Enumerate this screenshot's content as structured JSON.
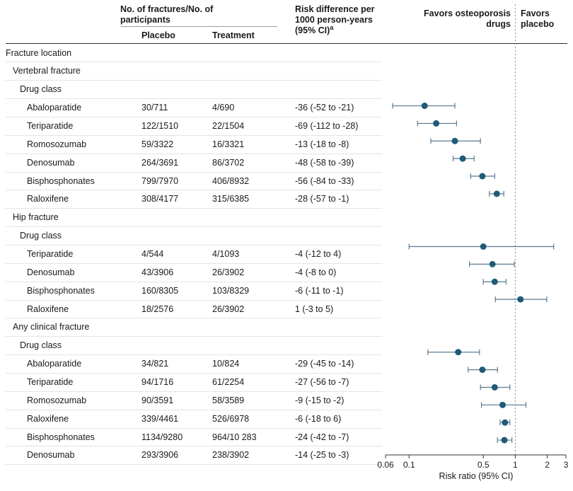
{
  "header": {
    "fractures_group": "No. of fractures/No. of participants",
    "placebo": "Placebo",
    "treatment": "Treatment",
    "risk_diff": "Risk difference per 1000 person-years (95% CI)",
    "risk_diff_sup": "a",
    "favors_left": "Favors osteoporosis drugs",
    "favors_right": "Favors placebo"
  },
  "axis": {
    "label": "Risk ratio (95% CI)",
    "scale": "log",
    "min": 0.06,
    "max": 3,
    "reference_line": 1,
    "ticks": [
      0.06,
      0.1,
      0.5,
      1,
      2,
      3
    ],
    "tick_labels": [
      "0.06",
      "0.1",
      "0.5",
      "1",
      "2",
      "3"
    ]
  },
  "colors": {
    "point": "#1f5b78",
    "error_bar": "#5a7990",
    "row_divider": "#e4e4e4",
    "axis": "#333333",
    "ref_line": "#8a8a8a",
    "header_rule": "#2b2b2b",
    "text": "#1a1a1a"
  },
  "chart_data": {
    "type": "forest",
    "x_scale": "log",
    "xlabel": "Risk ratio (95% CI)",
    "xlim": [
      0.06,
      3
    ],
    "rows": [
      {
        "kind": "section",
        "indent": 0,
        "label": "Fracture location"
      },
      {
        "kind": "section",
        "indent": 1,
        "label": "Vertebral fracture"
      },
      {
        "kind": "section",
        "indent": 2,
        "label": "Drug class"
      },
      {
        "kind": "data",
        "indent": 3,
        "label": "Abaloparatide",
        "placebo": "30/711",
        "treatment": "4/690",
        "risk_diff": "-36 (-52 to -21)",
        "rr": 0.14,
        "ci_low": 0.07,
        "ci_high": 0.27
      },
      {
        "kind": "data",
        "indent": 3,
        "label": "Teriparatide",
        "placebo": "122/1510",
        "treatment": "22/1504",
        "risk_diff": "-69 (-112 to -28)",
        "rr": 0.18,
        "ci_low": 0.12,
        "ci_high": 0.28
      },
      {
        "kind": "data",
        "indent": 3,
        "label": "Romosozumab",
        "placebo": "59/3322",
        "treatment": "16/3321",
        "risk_diff": "-13 (-18 to -8)",
        "rr": 0.27,
        "ci_low": 0.16,
        "ci_high": 0.47
      },
      {
        "kind": "data",
        "indent": 3,
        "label": "Denosumab",
        "placebo": "264/3691",
        "treatment": "86/3702",
        "risk_diff": "-48 (-58 to -39)",
        "rr": 0.32,
        "ci_low": 0.26,
        "ci_high": 0.41
      },
      {
        "kind": "data",
        "indent": 3,
        "label": "Bisphosphonates",
        "placebo": "799/7970",
        "treatment": "406/8932",
        "risk_diff": "-56 (-84 to -33)",
        "rr": 0.49,
        "ci_low": 0.38,
        "ci_high": 0.64
      },
      {
        "kind": "data",
        "indent": 3,
        "label": "Raloxifene",
        "placebo": "308/4177",
        "treatment": "315/6385",
        "risk_diff": "-28 (-57 to -1)",
        "rr": 0.67,
        "ci_low": 0.57,
        "ci_high": 0.78
      },
      {
        "kind": "section",
        "indent": 1,
        "label": "Hip fracture"
      },
      {
        "kind": "section",
        "indent": 2,
        "label": "Drug class"
      },
      {
        "kind": "data",
        "indent": 3,
        "label": "Teriparatide",
        "placebo": "4/544",
        "treatment": "4/1093",
        "risk_diff": "-4 (-12 to 4)",
        "rr": 0.5,
        "ci_low": 0.1,
        "ci_high": 2.3
      },
      {
        "kind": "data",
        "indent": 3,
        "label": "Denosumab",
        "placebo": "43/3906",
        "treatment": "26/3902",
        "risk_diff": "-4 (-8 to 0)",
        "rr": 0.61,
        "ci_low": 0.37,
        "ci_high": 0.98
      },
      {
        "kind": "data",
        "indent": 3,
        "label": "Bisphosphonates",
        "placebo": "160/8305",
        "treatment": "103/8329",
        "risk_diff": "-6 (-11 to -1)",
        "rr": 0.64,
        "ci_low": 0.5,
        "ci_high": 0.82
      },
      {
        "kind": "data",
        "indent": 3,
        "label": "Raloxifene",
        "placebo": "18/2576",
        "treatment": "26/3902",
        "risk_diff": "1 (-3 to 5)",
        "rr": 1.12,
        "ci_low": 0.65,
        "ci_high": 1.98
      },
      {
        "kind": "section",
        "indent": 1,
        "label": "Any clinical fracture"
      },
      {
        "kind": "section",
        "indent": 2,
        "label": "Drug class"
      },
      {
        "kind": "data",
        "indent": 3,
        "label": "Abaloparatide",
        "placebo": "34/821",
        "treatment": "10/824",
        "risk_diff": "-29 (-45 to -14)",
        "rr": 0.29,
        "ci_low": 0.15,
        "ci_high": 0.46
      },
      {
        "kind": "data",
        "indent": 3,
        "label": "Teriparatide",
        "placebo": "94/1716",
        "treatment": "61/2254",
        "risk_diff": "-27 (-56 to -7)",
        "rr": 0.49,
        "ci_low": 0.36,
        "ci_high": 0.68
      },
      {
        "kind": "data",
        "indent": 3,
        "label": "Romosozumab",
        "placebo": "90/3591",
        "treatment": "58/3589",
        "risk_diff": "-9 (-15 to -2)",
        "rr": 0.64,
        "ci_low": 0.47,
        "ci_high": 0.89
      },
      {
        "kind": "data",
        "indent": 3,
        "label": "Raloxifene",
        "placebo": "339/4461",
        "treatment": "526/6978",
        "risk_diff": "-6 (-18 to 6)",
        "rr": 0.76,
        "ci_low": 0.48,
        "ci_high": 1.26
      },
      {
        "kind": "data",
        "indent": 3,
        "label": "Bisphosphonates",
        "placebo": "1134/9280",
        "treatment": "964/10 283",
        "risk_diff": "-24 (-42 to -7)",
        "rr": 0.8,
        "ci_low": 0.72,
        "ci_high": 0.89
      },
      {
        "kind": "data",
        "indent": 3,
        "label": "Denosumab",
        "placebo": "293/3906",
        "treatment": "238/3902",
        "risk_diff": "-14 (-25 to -3)",
        "rr": 0.79,
        "ci_low": 0.68,
        "ci_high": 0.93
      }
    ]
  }
}
